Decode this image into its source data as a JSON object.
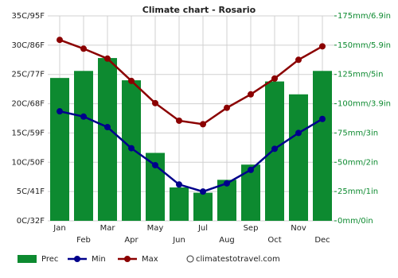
{
  "chart_data": {
    "type": "combo",
    "title": "Climate chart - Rosario",
    "categories": [
      "Jan",
      "Feb",
      "Mar",
      "Apr",
      "May",
      "Jun",
      "Jul",
      "Aug",
      "Sep",
      "Oct",
      "Nov",
      "Dec"
    ],
    "series": [
      {
        "name": "Prec",
        "kind": "bar",
        "axis": "y2",
        "color": "#0d8a30",
        "values": [
          122,
          128,
          139,
          120,
          58,
          28.5,
          24,
          35,
          48,
          119,
          108,
          128
        ]
      },
      {
        "name": "Min",
        "kind": "line",
        "color": "#00008b",
        "values": [
          18.7,
          17.8,
          16,
          12.4,
          9.5,
          6.2,
          5,
          6.4,
          8.7,
          12.3,
          15,
          17.4
        ]
      },
      {
        "name": "Max",
        "kind": "line",
        "color": "#8b0000",
        "values": [
          30.9,
          29.4,
          27.7,
          23.9,
          20.1,
          17.1,
          16.5,
          19.3,
          21.6,
          24.3,
          27.5,
          29.8
        ]
      }
    ],
    "ylim": [
      0,
      35
    ],
    "yticks": [
      {
        "value": 0,
        "label": "0C/32F"
      },
      {
        "value": 5,
        "label": "5C/41F"
      },
      {
        "value": 10,
        "label": "10C/50F"
      },
      {
        "value": 15,
        "label": "15C/59F"
      },
      {
        "value": 20,
        "label": "20C/68F"
      },
      {
        "value": 25,
        "label": "25C/77F"
      },
      {
        "value": 30,
        "label": "30C/86F"
      },
      {
        "value": 35,
        "label": "35C/95F"
      }
    ],
    "y2lim": [
      0,
      175
    ],
    "y2ticks": [
      {
        "value": 0,
        "label": "0mm/0in"
      },
      {
        "value": 25,
        "label": "25mm/1in"
      },
      {
        "value": 50,
        "label": "50mm/2in"
      },
      {
        "value": 75,
        "label": "75mm/3in"
      },
      {
        "value": 100,
        "label": "100mm/3.9in"
      },
      {
        "value": 125,
        "label": "125mm/5in"
      },
      {
        "value": 150,
        "label": "150mm/5.9in"
      },
      {
        "value": 175,
        "label": "175mm/6.9in"
      }
    ],
    "y2_tick_color": "#0d8a30",
    "grid": true,
    "source": "climatestotravel.com"
  }
}
